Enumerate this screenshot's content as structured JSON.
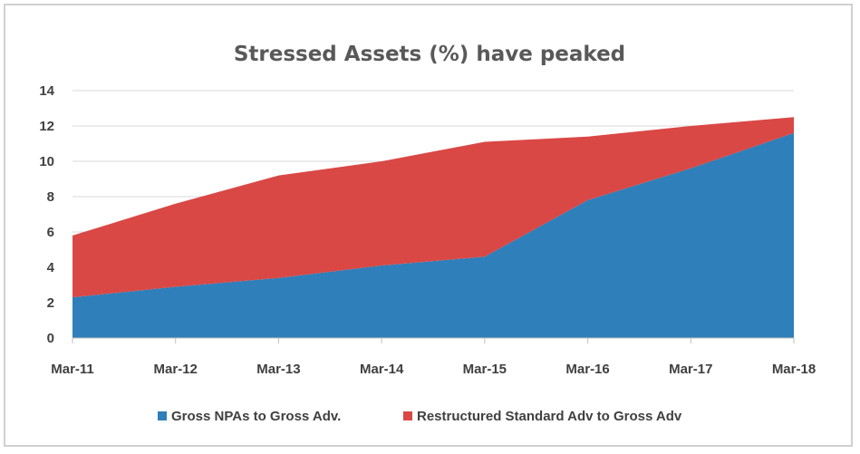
{
  "chart_data": {
    "type": "area",
    "stacked": true,
    "title": "Stressed Assets (%) have peaked",
    "xlabel": "",
    "ylabel": "",
    "categories": [
      "Mar-11",
      "Mar-12",
      "Mar-13",
      "Mar-14",
      "Mar-15",
      "Mar-16",
      "Mar-17",
      "Mar-18"
    ],
    "ylim": [
      0,
      14
    ],
    "yticks": [
      "0",
      "2",
      "4",
      "6",
      "8",
      "10",
      "12",
      "14"
    ],
    "grid": true,
    "legend_position": "bottom",
    "series": [
      {
        "name": "Gross NPAs to Gross Adv.",
        "color": "#2e7fba",
        "values": [
          2.3,
          2.9,
          3.4,
          4.1,
          4.6,
          7.8,
          9.6,
          11.6
        ]
      },
      {
        "name": "Restructured Standard Adv to Gross Adv",
        "color": "#d94845",
        "values": [
          3.5,
          4.7,
          5.8,
          5.9,
          6.5,
          3.6,
          2.4,
          0.9
        ]
      }
    ]
  }
}
